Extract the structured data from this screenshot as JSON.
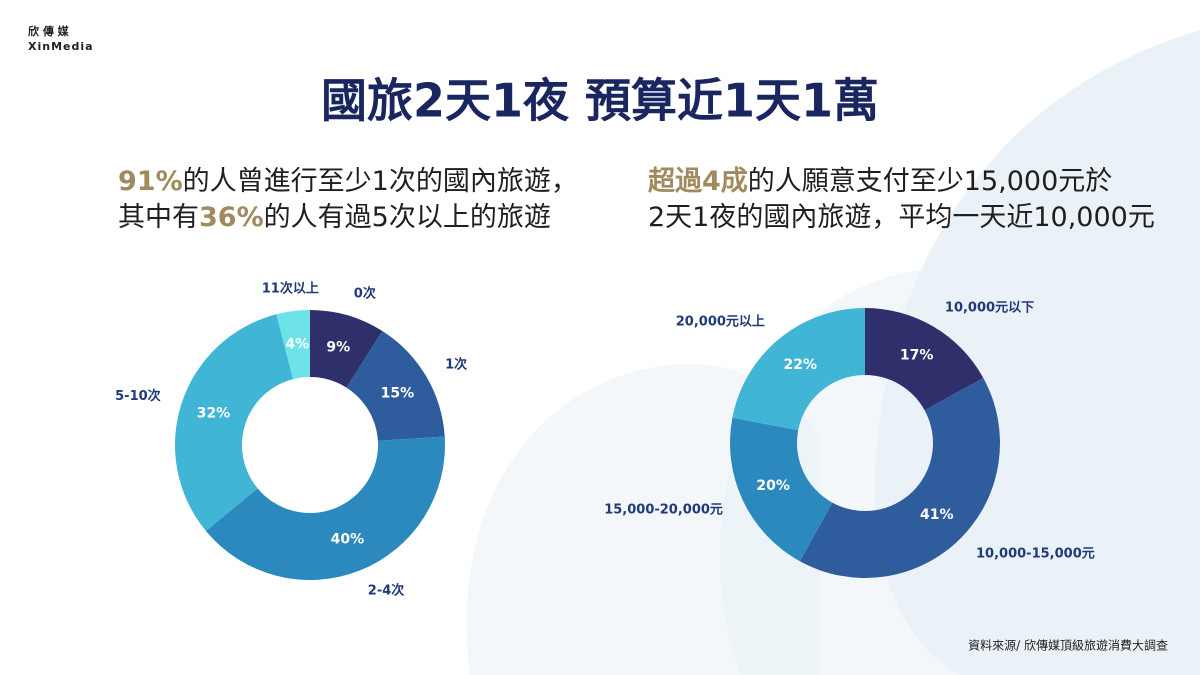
{
  "logo": {
    "name": "欣 傳 媒",
    "name_en": "XinMedia"
  },
  "title": "國旅2天1夜 預算近1天1萬",
  "source": "資料來源/ 欣傳媒頂級旅遊消費大調查",
  "chart_data": [
    {
      "type": "donut",
      "highlight_color": "#a08a5e",
      "subtitle": [
        [
          {
            "text": "91%",
            "highlight": true
          },
          {
            "text": "的人曾進行至少1次的國內旅遊，",
            "highlight": false
          }
        ],
        [
          {
            "text": "其中有",
            "highlight": false
          },
          {
            "text": "36%",
            "highlight": true
          },
          {
            "text": "的人有過5次以上的旅遊",
            "highlight": false
          }
        ]
      ],
      "categories": [
        "0次",
        "1次",
        "2-4次",
        "5-10次",
        "11次以上"
      ],
      "values": [
        9,
        15,
        40,
        32,
        4
      ],
      "value_labels": [
        "9%",
        "15%",
        "40%",
        "32%",
        "4%"
      ],
      "colors": [
        "#2e2f6b",
        "#2f5c9c",
        "#2b89bd",
        "#40b5d6",
        "#6de3e8"
      ]
    },
    {
      "type": "donut",
      "highlight_color": "#a08a5e",
      "subtitle": [
        [
          {
            "text": "超過4成",
            "highlight": true
          },
          {
            "text": "的人願意支付至少15,000元於",
            "highlight": false
          }
        ],
        [
          {
            "text": "2天1夜的國內旅遊，平均一天近10,000元",
            "highlight": false
          }
        ]
      ],
      "categories": [
        "10,000元以下",
        "10,000-15,000元",
        "15,000-20,000元",
        "20,000元以上"
      ],
      "values": [
        17,
        41,
        20,
        22
      ],
      "value_labels": [
        "17%",
        "41%",
        "20%",
        "22%"
      ],
      "colors": [
        "#2e2f6b",
        "#2f5c9c",
        "#2b89bd",
        "#40b5d6"
      ]
    }
  ]
}
